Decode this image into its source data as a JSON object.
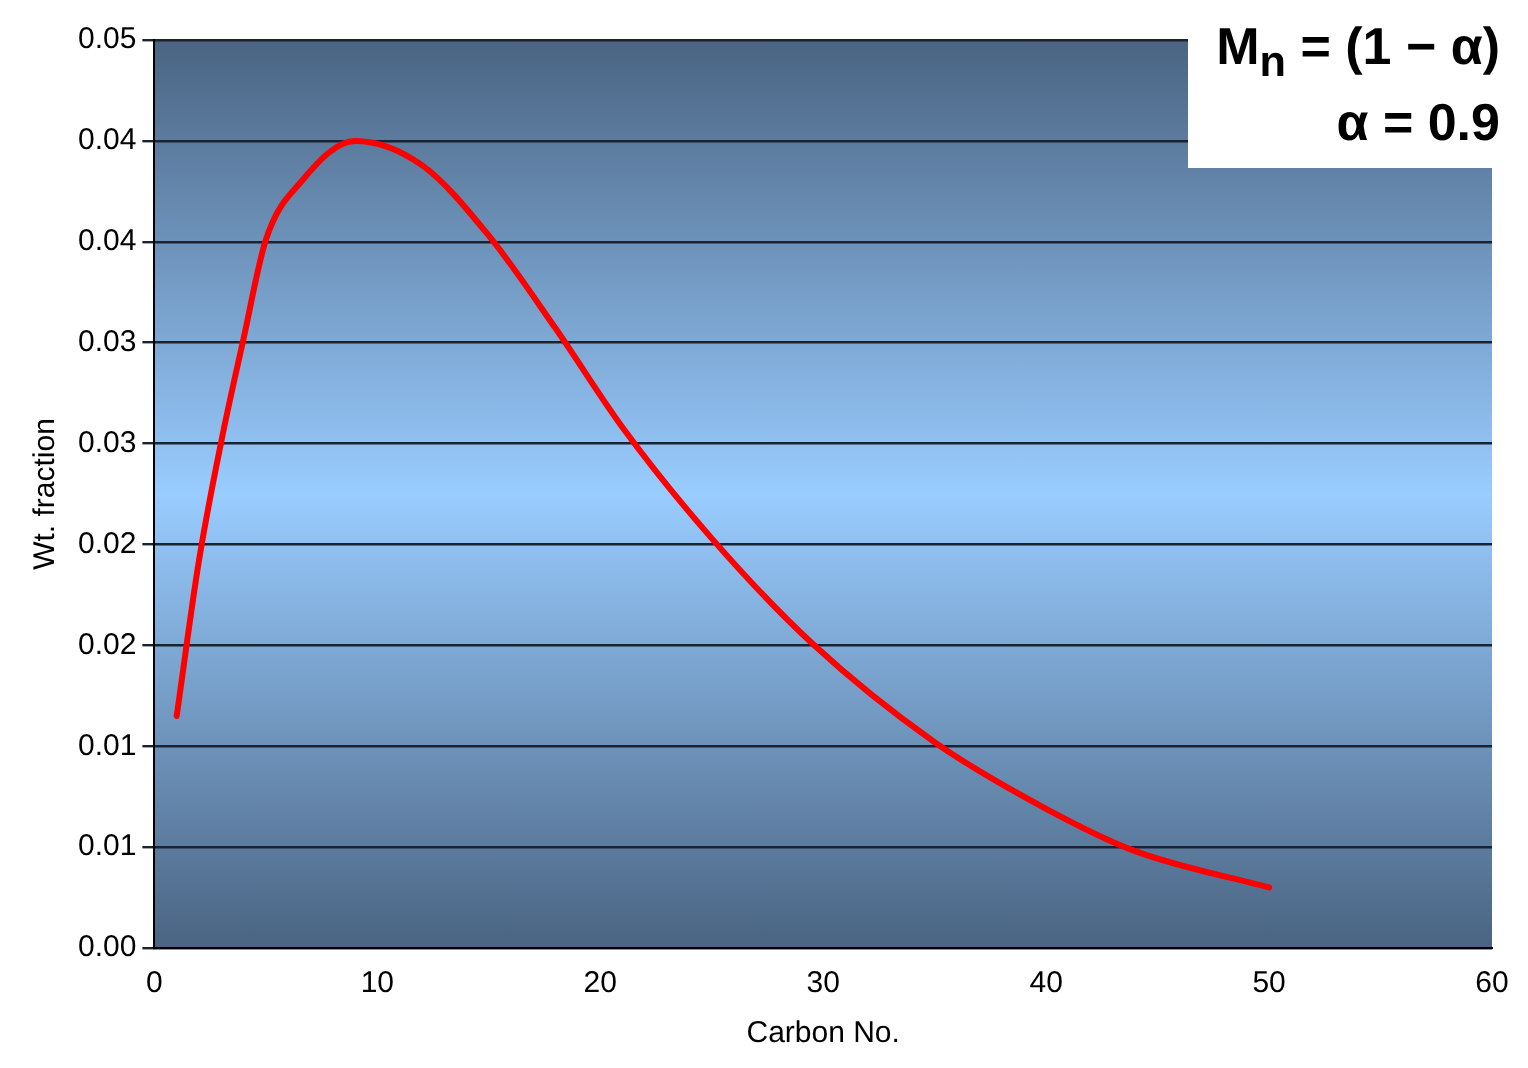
{
  "chart_data": {
    "type": "line",
    "xlabel": "Carbon No.",
    "ylabel": "Wt. fraction",
    "annotations": [
      "M$_{n}$ = (1 − α)",
      "α = 0.9"
    ],
    "x": [
      1,
      2,
      3,
      4,
      5,
      6.6,
      9,
      12,
      15,
      18,
      21,
      25,
      29.5,
      35,
      40,
      44,
      50
    ],
    "series": [
      {
        "color": "#ff0000",
        "values": [
          0.0115,
          0.0192,
          0.0251,
          0.0302,
          0.0351,
          0.038,
          0.04,
          0.0388,
          0.0353,
          0.0307,
          0.0258,
          0.0203,
          0.0151,
          0.0102,
          0.0069,
          0.0048,
          0.003
        ]
      }
    ],
    "xlim": [
      0,
      60
    ],
    "xticks": [
      0,
      10,
      20,
      30,
      40,
      50,
      60
    ],
    "ylim": [
      0,
      0.045
    ],
    "yticks": [
      {
        "value": 0,
        "label": "0.00"
      },
      {
        "value": 0.005,
        "label": "0.01"
      },
      {
        "value": 0.01,
        "label": "0.01"
      },
      {
        "value": 0.015,
        "label": "0.02"
      },
      {
        "value": 0.02,
        "label": "0.02"
      },
      {
        "value": 0.025,
        "label": "0.03"
      },
      {
        "value": 0.03,
        "label": "0.03"
      },
      {
        "value": 0.035,
        "label": "0.04"
      },
      {
        "value": 0.04,
        "label": "0.04"
      },
      {
        "value": 0.045,
        "label": "0.05"
      }
    ],
    "grid": "y",
    "legend": false,
    "marker": "none",
    "line_style": "solid"
  }
}
